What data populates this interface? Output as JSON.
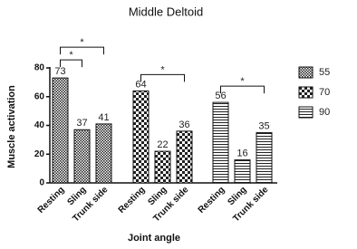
{
  "chart_data": {
    "type": "bar",
    "title": "Middle Deltoid",
    "x_label": "Joint angle",
    "y_label": "Muscle activation",
    "categories": [
      "Resting",
      "Sling",
      "Trunk side"
    ],
    "series": [
      {
        "name": "55",
        "color": "#222222",
        "pattern": "fine-check",
        "values": [
          73,
          37,
          41
        ]
      },
      {
        "name": "70",
        "color": "#222222",
        "pattern": "checker",
        "values": [
          64,
          22,
          36
        ]
      },
      {
        "name": "90",
        "color": "#222222",
        "pattern": "horizontal-lines",
        "values": [
          56,
          16,
          35
        ]
      }
    ],
    "significance": [
      {
        "group": "55",
        "between": [
          "Resting",
          "Sling"
        ],
        "label": "*"
      },
      {
        "group": "55",
        "between": [
          "Resting",
          "Trunk side"
        ],
        "label": "*"
      },
      {
        "group": "70",
        "between": [
          "Resting",
          "Trunk side"
        ],
        "label": "*"
      },
      {
        "group": "90",
        "between": [
          "Resting",
          "Trunk side"
        ],
        "label": "*"
      }
    ],
    "ylim": [
      0,
      80
    ],
    "yticks": [
      0,
      20,
      40,
      60,
      80
    ],
    "grid": false,
    "legend": "right"
  }
}
